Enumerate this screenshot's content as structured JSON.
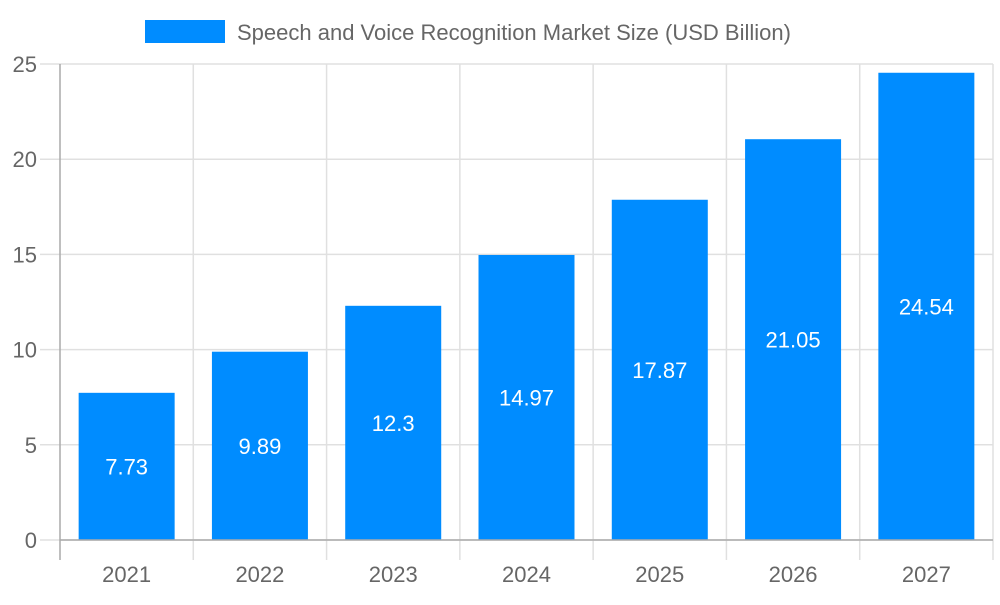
{
  "chart_data": {
    "type": "bar",
    "title": "",
    "xlabel": "",
    "ylabel": "",
    "categories": [
      "2021",
      "2022",
      "2023",
      "2024",
      "2025",
      "2026",
      "2027"
    ],
    "series": [
      {
        "name": "Speech and Voice Recognition Market Size (USD Billion)",
        "values": [
          7.73,
          9.89,
          12.3,
          14.97,
          17.87,
          21.05,
          24.54
        ],
        "data_labels": [
          "7.73",
          "9.89",
          "12.3",
          "14.97",
          "17.87",
          "21.05",
          "24.54"
        ],
        "color": "#008cff"
      }
    ],
    "ylim": [
      0,
      25
    ],
    "yticks": [
      "0",
      "5",
      "10",
      "15",
      "20",
      "25"
    ],
    "grid": true,
    "legend_position": "top"
  }
}
